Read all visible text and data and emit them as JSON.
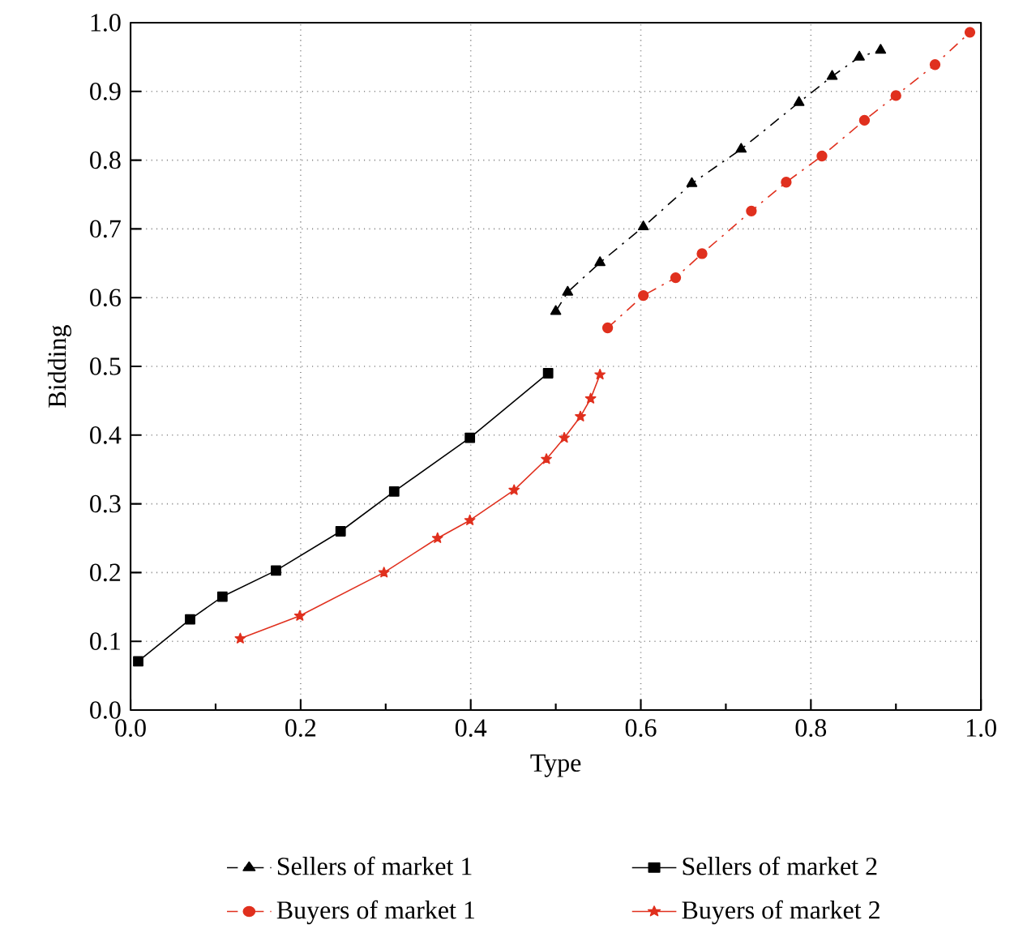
{
  "chart_data": {
    "type": "line",
    "xlabel": "Type",
    "ylabel": "Bidding",
    "xlim": [
      0,
      1
    ],
    "ylim": [
      0,
      1
    ],
    "xticks": [
      {
        "value": 0,
        "label": "0.0"
      },
      {
        "value": 0.2,
        "label": "0.2"
      },
      {
        "value": 0.4,
        "label": "0.4"
      },
      {
        "value": 0.6,
        "label": "0.6"
      },
      {
        "value": 0.8,
        "label": "0.8"
      },
      {
        "value": 1,
        "label": "1.0"
      }
    ],
    "yticks": [
      {
        "value": 0,
        "label": "0.0"
      },
      {
        "value": 0.1,
        "label": "0.1"
      },
      {
        "value": 0.2,
        "label": "0.2"
      },
      {
        "value": 0.3,
        "label": "0.3"
      },
      {
        "value": 0.4,
        "label": "0.4"
      },
      {
        "value": 0.5,
        "label": "0.5"
      },
      {
        "value": 0.6,
        "label": "0.6"
      },
      {
        "value": 0.7,
        "label": "0.7"
      },
      {
        "value": 0.8,
        "label": "0.8"
      },
      {
        "value": 0.9,
        "label": "0.9"
      },
      {
        "value": 1,
        "label": "1.0"
      }
    ],
    "grid": true,
    "legend": "bottom",
    "series": [
      {
        "name": "Sellers of market 1",
        "color": "#000000",
        "marker": "triangle",
        "line_style": "dashed",
        "x": [
          0.5,
          0.514,
          0.552,
          0.603,
          0.66,
          0.718,
          0.786,
          0.825,
          0.857,
          0.882
        ],
        "values": [
          0.58,
          0.608,
          0.651,
          0.703,
          0.766,
          0.816,
          0.884,
          0.922,
          0.95,
          0.96
        ]
      },
      {
        "name": "Buyers of market 1",
        "color": "#e0301e",
        "marker": "circle",
        "line_style": "dashed",
        "x": [
          0.561,
          0.603,
          0.641,
          0.672,
          0.73,
          0.771,
          0.813,
          0.863,
          0.9,
          0.946,
          0.987
        ],
        "values": [
          0.556,
          0.603,
          0.629,
          0.664,
          0.726,
          0.768,
          0.806,
          0.858,
          0.894,
          0.939,
          0.986
        ]
      },
      {
        "name": "Sellers of market 2",
        "color": "#000000",
        "marker": "square",
        "line_style": "solid",
        "x": [
          0.009,
          0.07,
          0.108,
          0.171,
          0.247,
          0.31,
          0.399,
          0.491
        ],
        "values": [
          0.071,
          0.132,
          0.165,
          0.203,
          0.26,
          0.318,
          0.396,
          0.49
        ]
      },
      {
        "name": "Buyers of market 2",
        "color": "#e0301e",
        "marker": "star",
        "line_style": "solid",
        "x": [
          0.129,
          0.199,
          0.298,
          0.361,
          0.399,
          0.451,
          0.489,
          0.51,
          0.529,
          0.541,
          0.552
        ],
        "values": [
          0.104,
          0.137,
          0.2,
          0.25,
          0.276,
          0.32,
          0.365,
          0.396,
          0.427,
          0.453,
          0.488
        ]
      }
    ]
  }
}
